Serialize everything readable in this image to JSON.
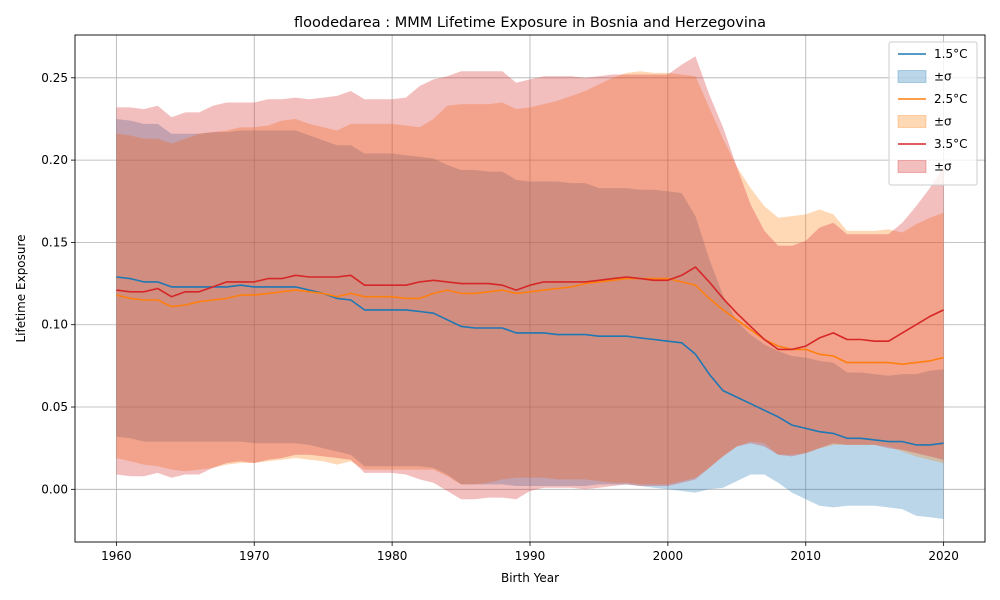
{
  "chart_data": {
    "type": "line",
    "title": "floodedarea : MMM Lifetime Exposure in Bosnia and Herzegovina",
    "xlabel": "Birth Year",
    "ylabel": "Lifetime Exposure",
    "xlim": [
      1957,
      2023
    ],
    "ylim": [
      -0.032,
      0.276
    ],
    "xticks": [
      1960,
      1970,
      1980,
      1990,
      2000,
      2010,
      2020
    ],
    "xtick_labels": [
      "1960",
      "1970",
      "1980",
      "1990",
      "2000",
      "2010",
      "2020"
    ],
    "yticks": [
      0.0,
      0.05,
      0.1,
      0.15,
      0.2,
      0.25
    ],
    "ytick_labels": [
      "0.00",
      "0.05",
      "0.10",
      "0.15",
      "0.20",
      "0.25"
    ],
    "grid": true,
    "legend_position": "top-right",
    "band_label": "±σ",
    "series": [
      {
        "name": "1.5°C",
        "color": "#1f77b4",
        "x": [
          1960,
          1961,
          1962,
          1963,
          1964,
          1965,
          1966,
          1967,
          1968,
          1969,
          1970,
          1971,
          1972,
          1973,
          1974,
          1975,
          1976,
          1977,
          1978,
          1979,
          1980,
          1981,
          1982,
          1983,
          1984,
          1985,
          1986,
          1987,
          1988,
          1989,
          1990,
          1991,
          1992,
          1993,
          1994,
          1995,
          1996,
          1997,
          1998,
          1999,
          2000,
          2001,
          2002,
          2003,
          2004,
          2005,
          2006,
          2007,
          2008,
          2009,
          2010,
          2011,
          2012,
          2013,
          2014,
          2015,
          2016,
          2017,
          2018,
          2019,
          2020
        ],
        "values": [
          0.129,
          0.128,
          0.126,
          0.126,
          0.123,
          0.123,
          0.123,
          0.123,
          0.123,
          0.124,
          0.123,
          0.123,
          0.123,
          0.123,
          0.121,
          0.119,
          0.116,
          0.115,
          0.109,
          0.109,
          0.109,
          0.109,
          0.108,
          0.107,
          0.103,
          0.099,
          0.098,
          0.098,
          0.098,
          0.095,
          0.095,
          0.095,
          0.094,
          0.094,
          0.094,
          0.093,
          0.093,
          0.093,
          0.092,
          0.091,
          0.09,
          0.089,
          0.082,
          0.07,
          0.06,
          0.056,
          0.052,
          0.048,
          0.044,
          0.039,
          0.037,
          0.035,
          0.034,
          0.031,
          0.031,
          0.03,
          0.029,
          0.029,
          0.027,
          0.027,
          0.028
        ],
        "upper": [
          0.225,
          0.224,
          0.222,
          0.222,
          0.216,
          0.216,
          0.216,
          0.217,
          0.217,
          0.218,
          0.218,
          0.218,
          0.218,
          0.218,
          0.215,
          0.212,
          0.209,
          0.209,
          0.204,
          0.204,
          0.204,
          0.203,
          0.202,
          0.201,
          0.197,
          0.194,
          0.194,
          0.193,
          0.193,
          0.188,
          0.187,
          0.187,
          0.187,
          0.186,
          0.186,
          0.183,
          0.183,
          0.183,
          0.182,
          0.182,
          0.181,
          0.18,
          0.166,
          0.14,
          0.118,
          0.102,
          0.094,
          0.088,
          0.084,
          0.081,
          0.08,
          0.078,
          0.077,
          0.071,
          0.071,
          0.07,
          0.069,
          0.07,
          0.07,
          0.072,
          0.073
        ],
        "lower": [
          0.032,
          0.031,
          0.029,
          0.029,
          0.029,
          0.029,
          0.029,
          0.029,
          0.029,
          0.029,
          0.028,
          0.028,
          0.028,
          0.028,
          0.027,
          0.025,
          0.023,
          0.021,
          0.014,
          0.014,
          0.014,
          0.014,
          0.014,
          0.013,
          0.009,
          0.003,
          0.003,
          0.003,
          0.003,
          0.002,
          0.002,
          0.002,
          0.002,
          0.002,
          0.002,
          0.003,
          0.003,
          0.003,
          0.002,
          0.001,
          0.0,
          -0.001,
          -0.002,
          0.0,
          0.001,
          0.005,
          0.009,
          0.009,
          0.004,
          -0.002,
          -0.006,
          -0.01,
          -0.011,
          -0.01,
          -0.01,
          -0.01,
          -0.011,
          -0.012,
          -0.016,
          -0.017,
          -0.018
        ]
      },
      {
        "name": "2.5°C",
        "color": "#ff7f0e",
        "x": [
          1960,
          1961,
          1962,
          1963,
          1964,
          1965,
          1966,
          1967,
          1968,
          1969,
          1970,
          1971,
          1972,
          1973,
          1974,
          1975,
          1976,
          1977,
          1978,
          1979,
          1980,
          1981,
          1982,
          1983,
          1984,
          1985,
          1986,
          1987,
          1988,
          1989,
          1990,
          1991,
          1992,
          1993,
          1994,
          1995,
          1996,
          1997,
          1998,
          1999,
          2000,
          2001,
          2002,
          2003,
          2004,
          2005,
          2006,
          2007,
          2008,
          2009,
          2010,
          2011,
          2012,
          2013,
          2014,
          2015,
          2016,
          2017,
          2018,
          2019,
          2020
        ],
        "values": [
          0.118,
          0.116,
          0.115,
          0.115,
          0.111,
          0.112,
          0.114,
          0.115,
          0.116,
          0.118,
          0.118,
          0.119,
          0.12,
          0.121,
          0.12,
          0.119,
          0.117,
          0.119,
          0.117,
          0.117,
          0.117,
          0.116,
          0.116,
          0.119,
          0.121,
          0.119,
          0.119,
          0.12,
          0.121,
          0.119,
          0.12,
          0.121,
          0.122,
          0.123,
          0.125,
          0.126,
          0.127,
          0.128,
          0.128,
          0.128,
          0.128,
          0.126,
          0.124,
          0.116,
          0.109,
          0.103,
          0.097,
          0.091,
          0.087,
          0.085,
          0.085,
          0.082,
          0.081,
          0.077,
          0.077,
          0.077,
          0.077,
          0.076,
          0.077,
          0.078,
          0.08
        ],
        "upper": [
          0.216,
          0.215,
          0.213,
          0.213,
          0.21,
          0.213,
          0.216,
          0.217,
          0.218,
          0.22,
          0.22,
          0.221,
          0.224,
          0.225,
          0.222,
          0.22,
          0.218,
          0.222,
          0.222,
          0.222,
          0.222,
          0.221,
          0.22,
          0.225,
          0.233,
          0.234,
          0.234,
          0.234,
          0.235,
          0.231,
          0.232,
          0.234,
          0.236,
          0.239,
          0.242,
          0.246,
          0.25,
          0.253,
          0.254,
          0.253,
          0.253,
          0.252,
          0.251,
          0.232,
          0.213,
          0.196,
          0.183,
          0.172,
          0.165,
          0.166,
          0.167,
          0.17,
          0.167,
          0.157,
          0.157,
          0.157,
          0.158,
          0.156,
          0.161,
          0.165,
          0.168
        ],
        "lower": [
          0.019,
          0.017,
          0.015,
          0.014,
          0.012,
          0.011,
          0.012,
          0.013,
          0.015,
          0.016,
          0.016,
          0.017,
          0.018,
          0.019,
          0.018,
          0.017,
          0.015,
          0.017,
          0.012,
          0.012,
          0.012,
          0.012,
          0.012,
          0.012,
          0.008,
          0.003,
          0.003,
          0.004,
          0.006,
          0.007,
          0.007,
          0.007,
          0.006,
          0.006,
          0.006,
          0.005,
          0.004,
          0.004,
          0.003,
          0.003,
          0.003,
          0.005,
          0.007,
          0.013,
          0.02,
          0.026,
          0.029,
          0.028,
          0.021,
          0.021,
          0.022,
          0.025,
          0.027,
          0.027,
          0.027,
          0.027,
          0.026,
          0.023,
          0.02,
          0.018,
          0.016
        ]
      },
      {
        "name": "3.5°C",
        "color": "#d62728",
        "x": [
          1960,
          1961,
          1962,
          1963,
          1964,
          1965,
          1966,
          1967,
          1968,
          1969,
          1970,
          1971,
          1972,
          1973,
          1974,
          1975,
          1976,
          1977,
          1978,
          1979,
          1980,
          1981,
          1982,
          1983,
          1984,
          1985,
          1986,
          1987,
          1988,
          1989,
          1990,
          1991,
          1992,
          1993,
          1994,
          1995,
          1996,
          1997,
          1998,
          1999,
          2000,
          2001,
          2002,
          2003,
          2004,
          2005,
          2006,
          2007,
          2008,
          2009,
          2010,
          2011,
          2012,
          2013,
          2014,
          2015,
          2016,
          2017,
          2018,
          2019,
          2020
        ],
        "values": [
          0.121,
          0.12,
          0.12,
          0.122,
          0.117,
          0.12,
          0.12,
          0.123,
          0.126,
          0.126,
          0.126,
          0.128,
          0.128,
          0.13,
          0.129,
          0.129,
          0.129,
          0.13,
          0.124,
          0.124,
          0.124,
          0.124,
          0.126,
          0.127,
          0.126,
          0.125,
          0.125,
          0.125,
          0.124,
          0.121,
          0.124,
          0.126,
          0.126,
          0.126,
          0.126,
          0.127,
          0.128,
          0.129,
          0.128,
          0.127,
          0.127,
          0.13,
          0.135,
          0.126,
          0.116,
          0.107,
          0.099,
          0.091,
          0.085,
          0.085,
          0.087,
          0.092,
          0.095,
          0.091,
          0.091,
          0.09,
          0.09,
          0.095,
          0.1,
          0.105,
          0.109
        ],
        "upper": [
          0.232,
          0.232,
          0.231,
          0.233,
          0.226,
          0.229,
          0.229,
          0.233,
          0.235,
          0.235,
          0.235,
          0.237,
          0.237,
          0.238,
          0.237,
          0.238,
          0.239,
          0.242,
          0.237,
          0.237,
          0.237,
          0.238,
          0.245,
          0.249,
          0.251,
          0.254,
          0.254,
          0.254,
          0.254,
          0.247,
          0.249,
          0.251,
          0.251,
          0.251,
          0.25,
          0.251,
          0.252,
          0.252,
          0.252,
          0.252,
          0.252,
          0.258,
          0.263,
          0.24,
          0.22,
          0.196,
          0.173,
          0.157,
          0.148,
          0.148,
          0.151,
          0.159,
          0.162,
          0.155,
          0.155,
          0.155,
          0.155,
          0.162,
          0.172,
          0.183,
          0.196
        ],
        "lower": [
          0.009,
          0.008,
          0.008,
          0.01,
          0.007,
          0.009,
          0.009,
          0.013,
          0.016,
          0.017,
          0.016,
          0.018,
          0.019,
          0.021,
          0.021,
          0.02,
          0.019,
          0.018,
          0.01,
          0.01,
          0.01,
          0.009,
          0.006,
          0.004,
          -0.001,
          -0.006,
          -0.006,
          -0.005,
          -0.005,
          -0.006,
          -0.001,
          0.001,
          0.001,
          0.001,
          0.0,
          0.001,
          0.002,
          0.003,
          0.002,
          0.002,
          0.002,
          0.004,
          0.006,
          0.013,
          0.02,
          0.026,
          0.028,
          0.026,
          0.021,
          0.02,
          0.022,
          0.025,
          0.028,
          0.027,
          0.027,
          0.027,
          0.025,
          0.024,
          0.022,
          0.02,
          0.018
        ]
      }
    ]
  }
}
